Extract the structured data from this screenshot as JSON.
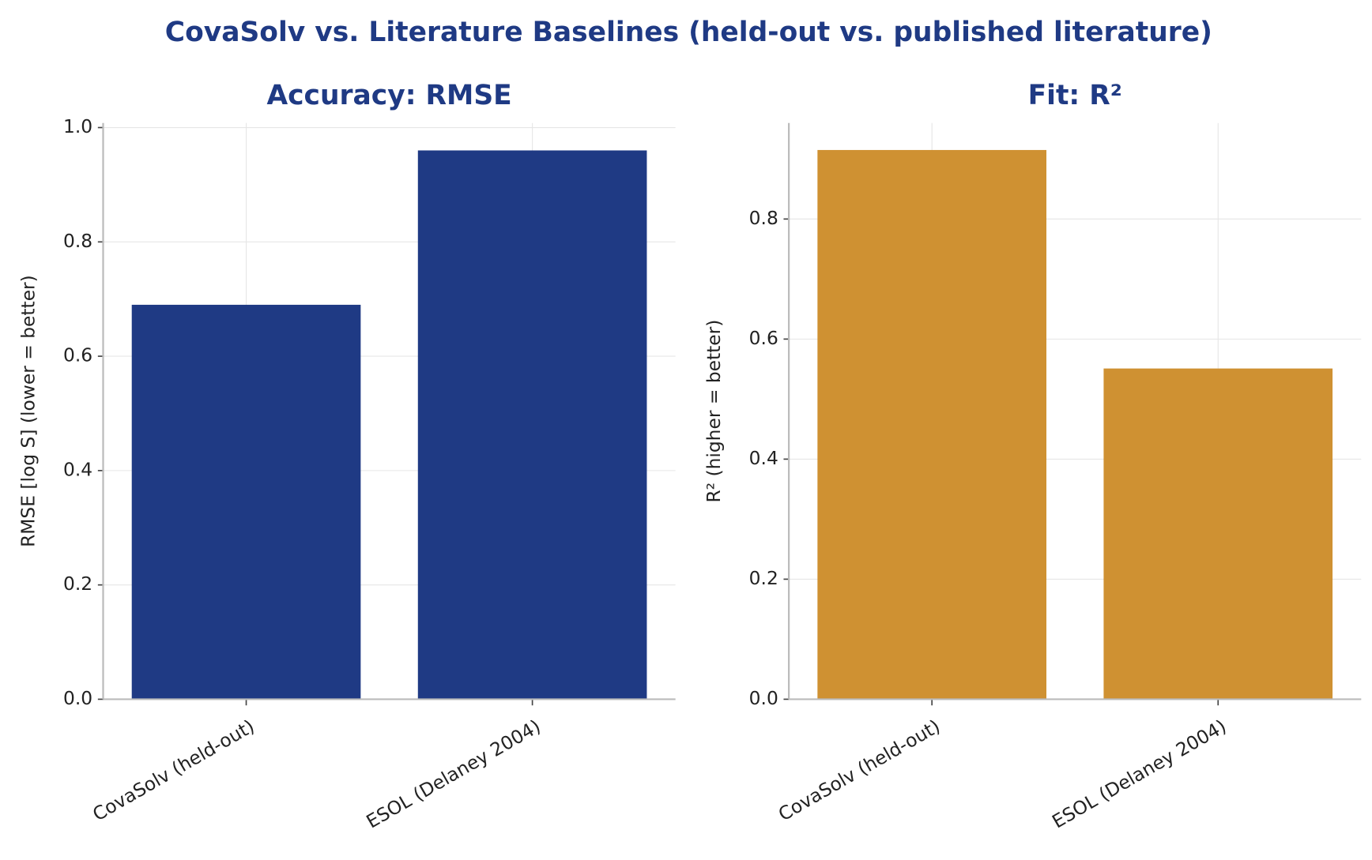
{
  "title": "CovaSolv vs. Literature Baselines (held-out vs. published literature)",
  "chart_data": [
    {
      "type": "bar",
      "title": "Accuracy: RMSE",
      "y_label": "RMSE [log S]  (lower = better)",
      "categories": [
        "CovaSolv (held-out)",
        "ESOL (Delaney 2004)"
      ],
      "values": [
        0.69,
        0.96
      ],
      "color": "#1f3a84",
      "ylim": [
        0,
        1.008
      ],
      "yticks": [
        {
          "value": 0,
          "label": "0.0"
        },
        0.2,
        0.4,
        0.6,
        0.8,
        {
          "value": 1,
          "label": "1.0"
        }
      ],
      "grid": true
    },
    {
      "type": "bar",
      "title": "Fit: R²",
      "y_label": "R²  (higher = better)",
      "categories": [
        "CovaSolv (held-out)",
        "ESOL (Delaney 2004)"
      ],
      "values": [
        0.915,
        0.551
      ],
      "color": "#cf9132",
      "ylim": [
        0,
        0.96
      ],
      "yticks": [
        {
          "value": 0,
          "label": "0.0"
        },
        0.2,
        0.4,
        0.6,
        0.8
      ],
      "grid": true
    }
  ]
}
